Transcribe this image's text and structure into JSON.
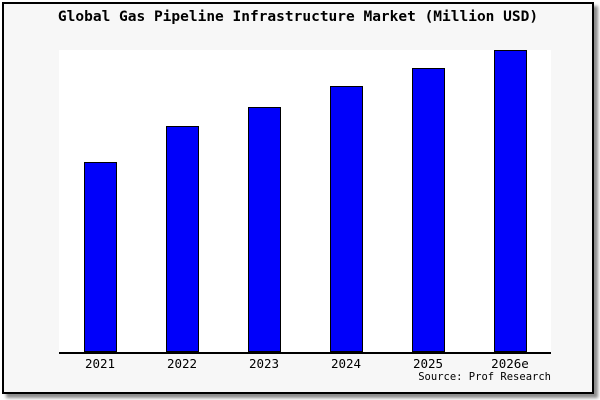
{
  "title": "Global Gas Pipeline Infrastructure Market (Million USD)",
  "source_credit": "Source: Prof Research",
  "chart_data": {
    "type": "bar",
    "title": "Global Gas Pipeline Infrastructure Market (Million USD)",
    "categories": [
      "2021",
      "2022",
      "2023",
      "2024",
      "2025",
      "2026e"
    ],
    "values": [
      63,
      75,
      81,
      88,
      94,
      100
    ],
    "values_note": "relative bar heights in % of tallest bar; chart displays no y-axis scale, gridlines or data labels",
    "xlabel": "",
    "ylabel": "",
    "ylim": [
      0,
      100
    ],
    "grid": false,
    "legend": false,
    "annotation": "Source: Prof Research",
    "bar_color": "#0000FA",
    "bar_border_color": "#000000",
    "axis_color": "#000000",
    "plot_bg": "#ffffff",
    "canvas_bg": "#f7f7f7"
  }
}
